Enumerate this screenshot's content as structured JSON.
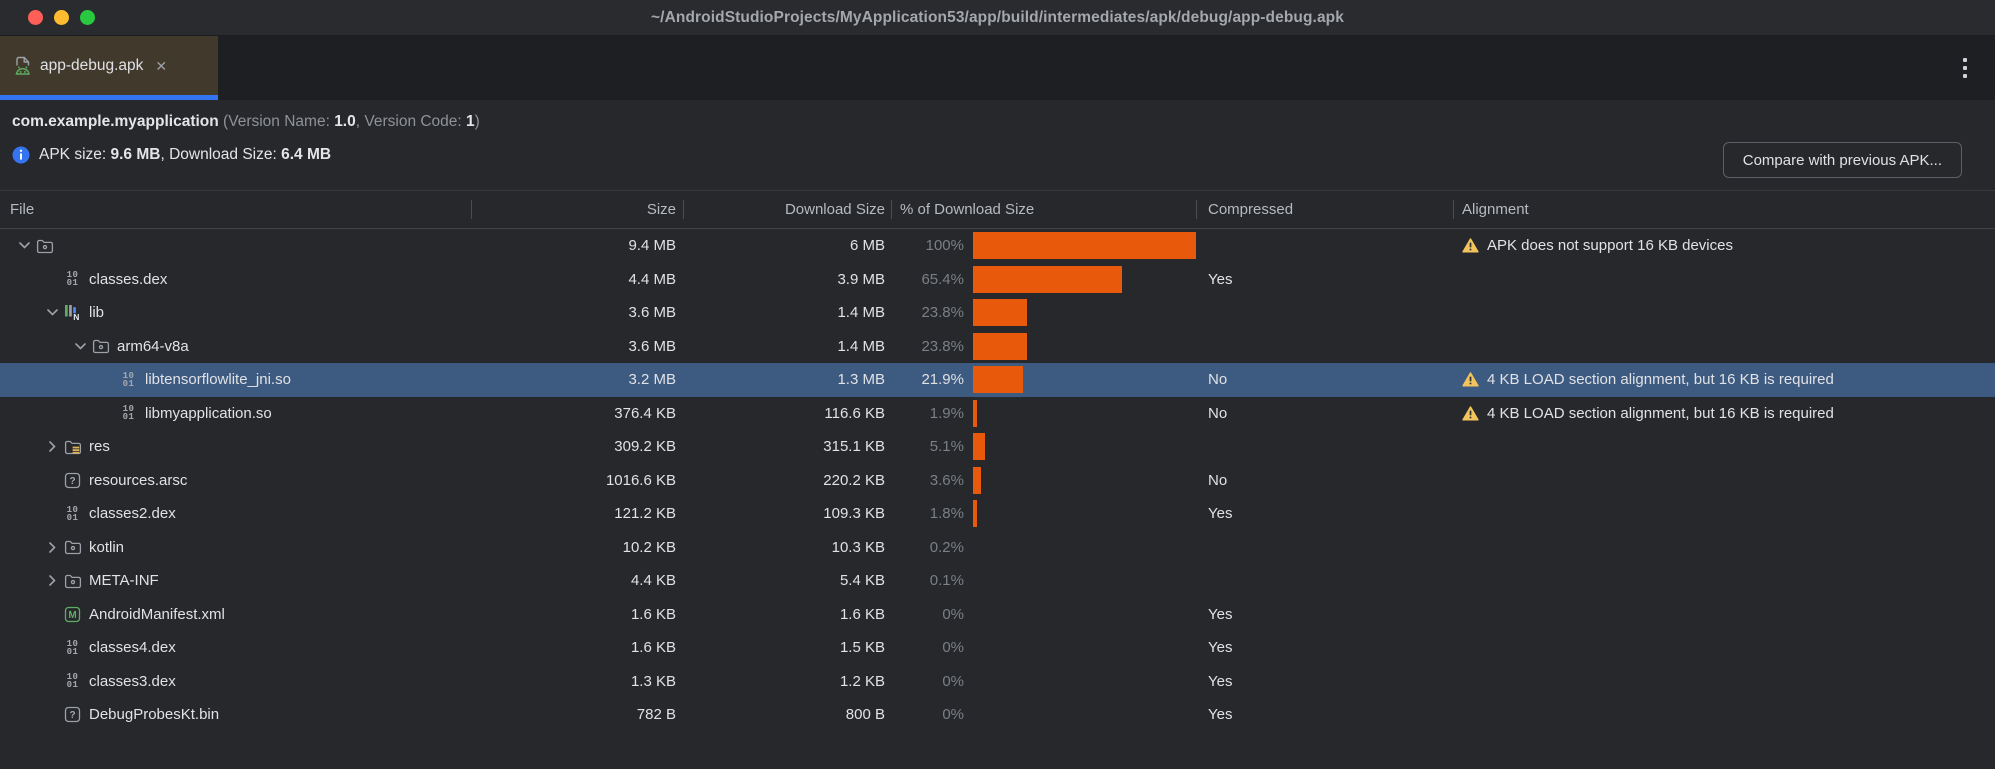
{
  "window": {
    "title": "~/AndroidStudioProjects/MyApplication53/app/build/intermediates/apk/debug/app-debug.apk"
  },
  "tab_bar": {
    "active_tab": {
      "label": "app-debug.apk",
      "close_glyph": "✕"
    }
  },
  "apk_header": {
    "package_name": "com.example.myapplication",
    "version_label_1": " (Version Name: ",
    "version_name": "1.0",
    "version_label_2": ", Version Code: ",
    "version_code": "1",
    "version_label_3": ")",
    "size_label": "APK size: ",
    "apk_size": "9.6 MB",
    "download_label": ", Download Size: ",
    "download_size": "6.4 MB",
    "compare_button_label": "Compare with previous APK..."
  },
  "table": {
    "columns": [
      "File",
      "Size",
      "Download Size",
      "% of Download Size",
      "Compressed",
      "Alignment"
    ],
    "rows": [
      {
        "file": "",
        "icon": "folder",
        "level": 0,
        "chevron": "down",
        "size": "9.4 MB",
        "download_size": "6 MB",
        "pct": "100%",
        "pct_value": 100,
        "compressed": "",
        "alignment": "APK does not support 16 KB devices",
        "warning": true,
        "selected": false
      },
      {
        "file": "classes.dex",
        "icon": "dex-file",
        "level": 1,
        "chevron": null,
        "size": "4.4 MB",
        "download_size": "3.9 MB",
        "pct": "65.4%",
        "pct_value": 65.4,
        "compressed": "Yes",
        "alignment": "",
        "warning": false,
        "selected": false
      },
      {
        "file": "lib",
        "icon": "lib-folder",
        "level": 1,
        "chevron": "down",
        "size": "3.6 MB",
        "download_size": "1.4 MB",
        "pct": "23.8%",
        "pct_value": 23.8,
        "compressed": "",
        "alignment": "",
        "warning": false,
        "selected": false
      },
      {
        "file": "arm64-v8a",
        "icon": "folder",
        "level": 2,
        "chevron": "down",
        "size": "3.6 MB",
        "download_size": "1.4 MB",
        "pct": "23.8%",
        "pct_value": 23.8,
        "compressed": "",
        "alignment": "",
        "warning": false,
        "selected": false
      },
      {
        "file": "libtensorflowlite_jni.so",
        "icon": "binary-file",
        "level": 3,
        "chevron": null,
        "size": "3.2 MB",
        "download_size": "1.3 MB",
        "pct": "21.9%",
        "pct_value": 21.9,
        "compressed": "No",
        "alignment": "4 KB LOAD section alignment, but 16 KB is required",
        "warning": true,
        "selected": true
      },
      {
        "file": "libmyapplication.so",
        "icon": "binary-file",
        "level": 3,
        "chevron": null,
        "size": "376.4 KB",
        "download_size": "116.6 KB",
        "pct": "1.9%",
        "pct_value": 1.9,
        "compressed": "No",
        "alignment": "4 KB LOAD section alignment, but 16 KB is required",
        "warning": true,
        "selected": false
      },
      {
        "file": "res",
        "icon": "res-folder",
        "level": 1,
        "chevron": "right",
        "size": "309.2 KB",
        "download_size": "315.1 KB",
        "pct": "5.1%",
        "pct_value": 5.1,
        "compressed": "",
        "alignment": "",
        "warning": false,
        "selected": false
      },
      {
        "file": "resources.arsc",
        "icon": "unknown-file",
        "level": 1,
        "chevron": null,
        "size": "1016.6 KB",
        "download_size": "220.2 KB",
        "pct": "3.6%",
        "pct_value": 3.6,
        "compressed": "No",
        "alignment": "",
        "warning": false,
        "selected": false
      },
      {
        "file": "classes2.dex",
        "icon": "dex-file",
        "level": 1,
        "chevron": null,
        "size": "121.2 KB",
        "download_size": "109.3 KB",
        "pct": "1.8%",
        "pct_value": 1.8,
        "compressed": "Yes",
        "alignment": "",
        "warning": false,
        "selected": false
      },
      {
        "file": "kotlin",
        "icon": "folder",
        "level": 1,
        "chevron": "right",
        "size": "10.2 KB",
        "download_size": "10.3 KB",
        "pct": "0.2%",
        "pct_value": 0.2,
        "compressed": "",
        "alignment": "",
        "warning": false,
        "selected": false
      },
      {
        "file": "META-INF",
        "icon": "folder",
        "level": 1,
        "chevron": "right",
        "size": "4.4 KB",
        "download_size": "5.4 KB",
        "pct": "0.1%",
        "pct_value": 0.1,
        "compressed": "",
        "alignment": "",
        "warning": false,
        "selected": false
      },
      {
        "file": "AndroidManifest.xml",
        "icon": "manifest-file",
        "level": 1,
        "chevron": null,
        "size": "1.6 KB",
        "download_size": "1.6 KB",
        "pct": "0%",
        "pct_value": 0,
        "compressed": "Yes",
        "alignment": "",
        "warning": false,
        "selected": false
      },
      {
        "file": "classes4.dex",
        "icon": "dex-file",
        "level": 1,
        "chevron": null,
        "size": "1.6 KB",
        "download_size": "1.5 KB",
        "pct": "0%",
        "pct_value": 0,
        "compressed": "Yes",
        "alignment": "",
        "warning": false,
        "selected": false
      },
      {
        "file": "classes3.dex",
        "icon": "dex-file",
        "level": 1,
        "chevron": null,
        "size": "1.3 KB",
        "download_size": "1.2 KB",
        "pct": "0%",
        "pct_value": 0,
        "compressed": "Yes",
        "alignment": "",
        "warning": false,
        "selected": false
      },
      {
        "file": "DebugProbesKt.bin",
        "icon": "unknown-file",
        "level": 1,
        "chevron": null,
        "size": "782 B",
        "download_size": "800 B",
        "pct": "0%",
        "pct_value": 0,
        "compressed": "Yes",
        "alignment": "",
        "warning": false,
        "selected": false
      }
    ]
  },
  "colors": {
    "accent_blue": "#3574f0",
    "selection_blue": "#3d5a80",
    "bar_orange": "#e8590c",
    "warning_yellow": "#f2c55c",
    "background": "#26282b",
    "tab_active_bg": "#413a2c"
  }
}
